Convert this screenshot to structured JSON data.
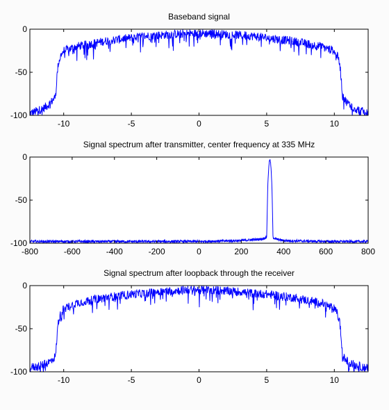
{
  "figure": {
    "background": "#fbfbfb",
    "line_color": "#0000ff"
  },
  "chart_data": [
    {
      "type": "line",
      "title": "Baseband signal",
      "xlim": [
        -12.5,
        12.5
      ],
      "ylim": [
        -100,
        0
      ],
      "xticks": [
        -10,
        -5,
        0,
        5,
        10
      ],
      "yticks": [
        0,
        -50,
        -100
      ],
      "grid": false,
      "series": [
        {
          "x": [
            -12.5,
            -12.0,
            -11.5,
            -11.0,
            -10.6,
            -10.5,
            -10.4,
            -10.2,
            -10.0,
            -9.0,
            -8.0,
            -7.0,
            -6.0,
            -5.0,
            -4.0,
            -3.0,
            -2.0,
            -1.0,
            0.0,
            1.0,
            2.0,
            3.0,
            4.0,
            5.0,
            6.0,
            7.0,
            8.0,
            9.0,
            10.0,
            10.2,
            10.4,
            10.5,
            10.6,
            11.0,
            11.5,
            12.0,
            12.5
          ],
          "y": [
            -98,
            -95,
            -92,
            -86,
            -78,
            -55,
            -40,
            -30,
            -25,
            -20,
            -17,
            -14,
            -12,
            -10,
            -8,
            -7,
            -6,
            -5,
            -5,
            -5,
            -6,
            -7,
            -8,
            -10,
            -12,
            -14,
            -17,
            -20,
            -25,
            -30,
            -40,
            -55,
            -78,
            -86,
            -92,
            -95,
            -98
          ]
        }
      ]
    },
    {
      "type": "line",
      "title": "Signal spectrum after transmitter, center frequency at 335 MHz",
      "xlim": [
        -800,
        800
      ],
      "ylim": [
        -100,
        0
      ],
      "xticks": [
        -800,
        -600,
        -400,
        -200,
        0,
        200,
        400,
        600,
        800
      ],
      "yticks": [
        0,
        -50,
        -100
      ],
      "grid": false,
      "series": [
        {
          "x": [
            -800,
            -600,
            -400,
            -200,
            0,
            200,
            300,
            320,
            325,
            330,
            335,
            340,
            345,
            350,
            360,
            400,
            600,
            800
          ],
          "y": [
            -98,
            -98,
            -98,
            -98,
            -98,
            -97,
            -95,
            -93,
            -35,
            -10,
            -2,
            -10,
            -35,
            -93,
            -95,
            -97,
            -98,
            -98
          ]
        }
      ]
    },
    {
      "type": "line",
      "title": "Signal spectrum after loopback through the receiver",
      "xlim": [
        -12.5,
        12.5
      ],
      "ylim": [
        -100,
        0
      ],
      "xticks": [
        -10,
        -5,
        0,
        5,
        10
      ],
      "yticks": [
        0,
        -50,
        -100
      ],
      "grid": false,
      "series": [
        {
          "x": [
            -12.5,
            -12.0,
            -11.5,
            -11.0,
            -10.6,
            -10.5,
            -10.4,
            -10.2,
            -10.0,
            -9.0,
            -8.0,
            -7.0,
            -6.0,
            -5.0,
            -4.0,
            -3.0,
            -2.0,
            -1.0,
            0.0,
            1.0,
            2.0,
            3.0,
            4.0,
            5.0,
            6.0,
            7.0,
            8.0,
            9.0,
            10.0,
            10.2,
            10.4,
            10.5,
            10.6,
            11.0,
            11.5,
            12.0,
            12.5
          ],
          "y": [
            -95,
            -94,
            -92,
            -88,
            -82,
            -60,
            -42,
            -32,
            -27,
            -20,
            -17,
            -14,
            -12,
            -10,
            -9,
            -7,
            -6,
            -5,
            -5,
            -5,
            -6,
            -7,
            -9,
            -10,
            -12,
            -14,
            -17,
            -20,
            -27,
            -32,
            -42,
            -60,
            -82,
            -88,
            -92,
            -94,
            -95
          ]
        }
      ]
    }
  ]
}
